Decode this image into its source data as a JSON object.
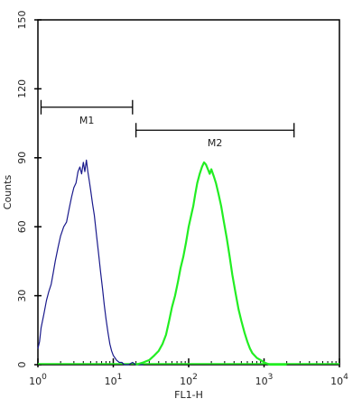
{
  "chart_data": {
    "type": "line",
    "title": "",
    "xlabel": "FL1-H",
    "ylabel": "Counts",
    "x_scale": "log",
    "xlim": [
      1,
      10000
    ],
    "ylim": [
      0,
      150
    ],
    "x_ticks": [
      {
        "value": 1,
        "base": "10",
        "exp": "0"
      },
      {
        "value": 10,
        "base": "10",
        "exp": "1"
      },
      {
        "value": 100,
        "base": "10",
        "exp": "2"
      },
      {
        "value": 1000,
        "base": "10",
        "exp": "3"
      },
      {
        "value": 10000,
        "base": "10",
        "exp": "4"
      }
    ],
    "y_ticks": [
      {
        "value": 0,
        "label": "0"
      },
      {
        "value": 30,
        "label": "30"
      },
      {
        "value": 60,
        "label": "60"
      },
      {
        "value": 90,
        "label": "90"
      },
      {
        "value": 120,
        "label": "120"
      },
      {
        "value": 150,
        "label": "150"
      }
    ],
    "grid": false,
    "legend": "none",
    "series": [
      {
        "color": "#1a1a8c",
        "x": [
          1.0,
          1.05,
          1.1,
          1.2,
          1.3,
          1.4,
          1.5,
          1.6,
          1.7,
          1.85,
          2.0,
          2.2,
          2.4,
          2.6,
          2.8,
          3.0,
          3.2,
          3.4,
          3.6,
          3.8,
          4.0,
          4.2,
          4.4,
          4.6,
          4.8,
          5.0,
          5.3,
          5.6,
          6.0,
          6.4,
          6.8,
          7.2,
          7.6,
          8.0,
          8.5,
          9.0,
          9.5,
          10.0,
          10.5,
          11.0,
          12.0,
          13.0,
          14.0,
          16.0,
          18.0,
          20.0,
          22.0,
          25.0
        ],
        "y": [
          7,
          10,
          16,
          22,
          28,
          32,
          35,
          40,
          45,
          51,
          56,
          60,
          62,
          68,
          73,
          77,
          79,
          84,
          86,
          83,
          88,
          84,
          89,
          84,
          80,
          76,
          70,
          65,
          56,
          48,
          40,
          33,
          26,
          20,
          14,
          9,
          6,
          4,
          3,
          2,
          1,
          1,
          0,
          0,
          1,
          0,
          0,
          0
        ]
      },
      {
        "color": "#22ee22",
        "x": [
          20,
          25,
          30,
          35,
          40,
          45,
          50,
          55,
          60,
          66,
          72,
          78,
          85,
          92,
          100,
          108,
          115,
          122,
          130,
          140,
          150,
          160,
          170,
          180,
          190,
          200,
          215,
          230,
          250,
          270,
          290,
          320,
          350,
          380,
          420,
          460,
          500,
          550,
          600,
          650,
          700,
          800,
          900,
          1000,
          1200,
          1500,
          2000
        ],
        "y": [
          0,
          1,
          2,
          4,
          6,
          9,
          13,
          19,
          25,
          30,
          36,
          42,
          47,
          53,
          60,
          65,
          69,
          74,
          79,
          83,
          86,
          88,
          87,
          85,
          83,
          85,
          82,
          79,
          74,
          69,
          63,
          55,
          47,
          39,
          31,
          24,
          19,
          14,
          10,
          7,
          5,
          3,
          2,
          1,
          0,
          0,
          0
        ]
      }
    ],
    "gates": [
      {
        "label": "M1",
        "x_start": 1.1,
        "x_end": 18,
        "y": 112
      },
      {
        "label": "M2",
        "x_start": 20,
        "x_end": 2500,
        "y": 102
      }
    ]
  }
}
